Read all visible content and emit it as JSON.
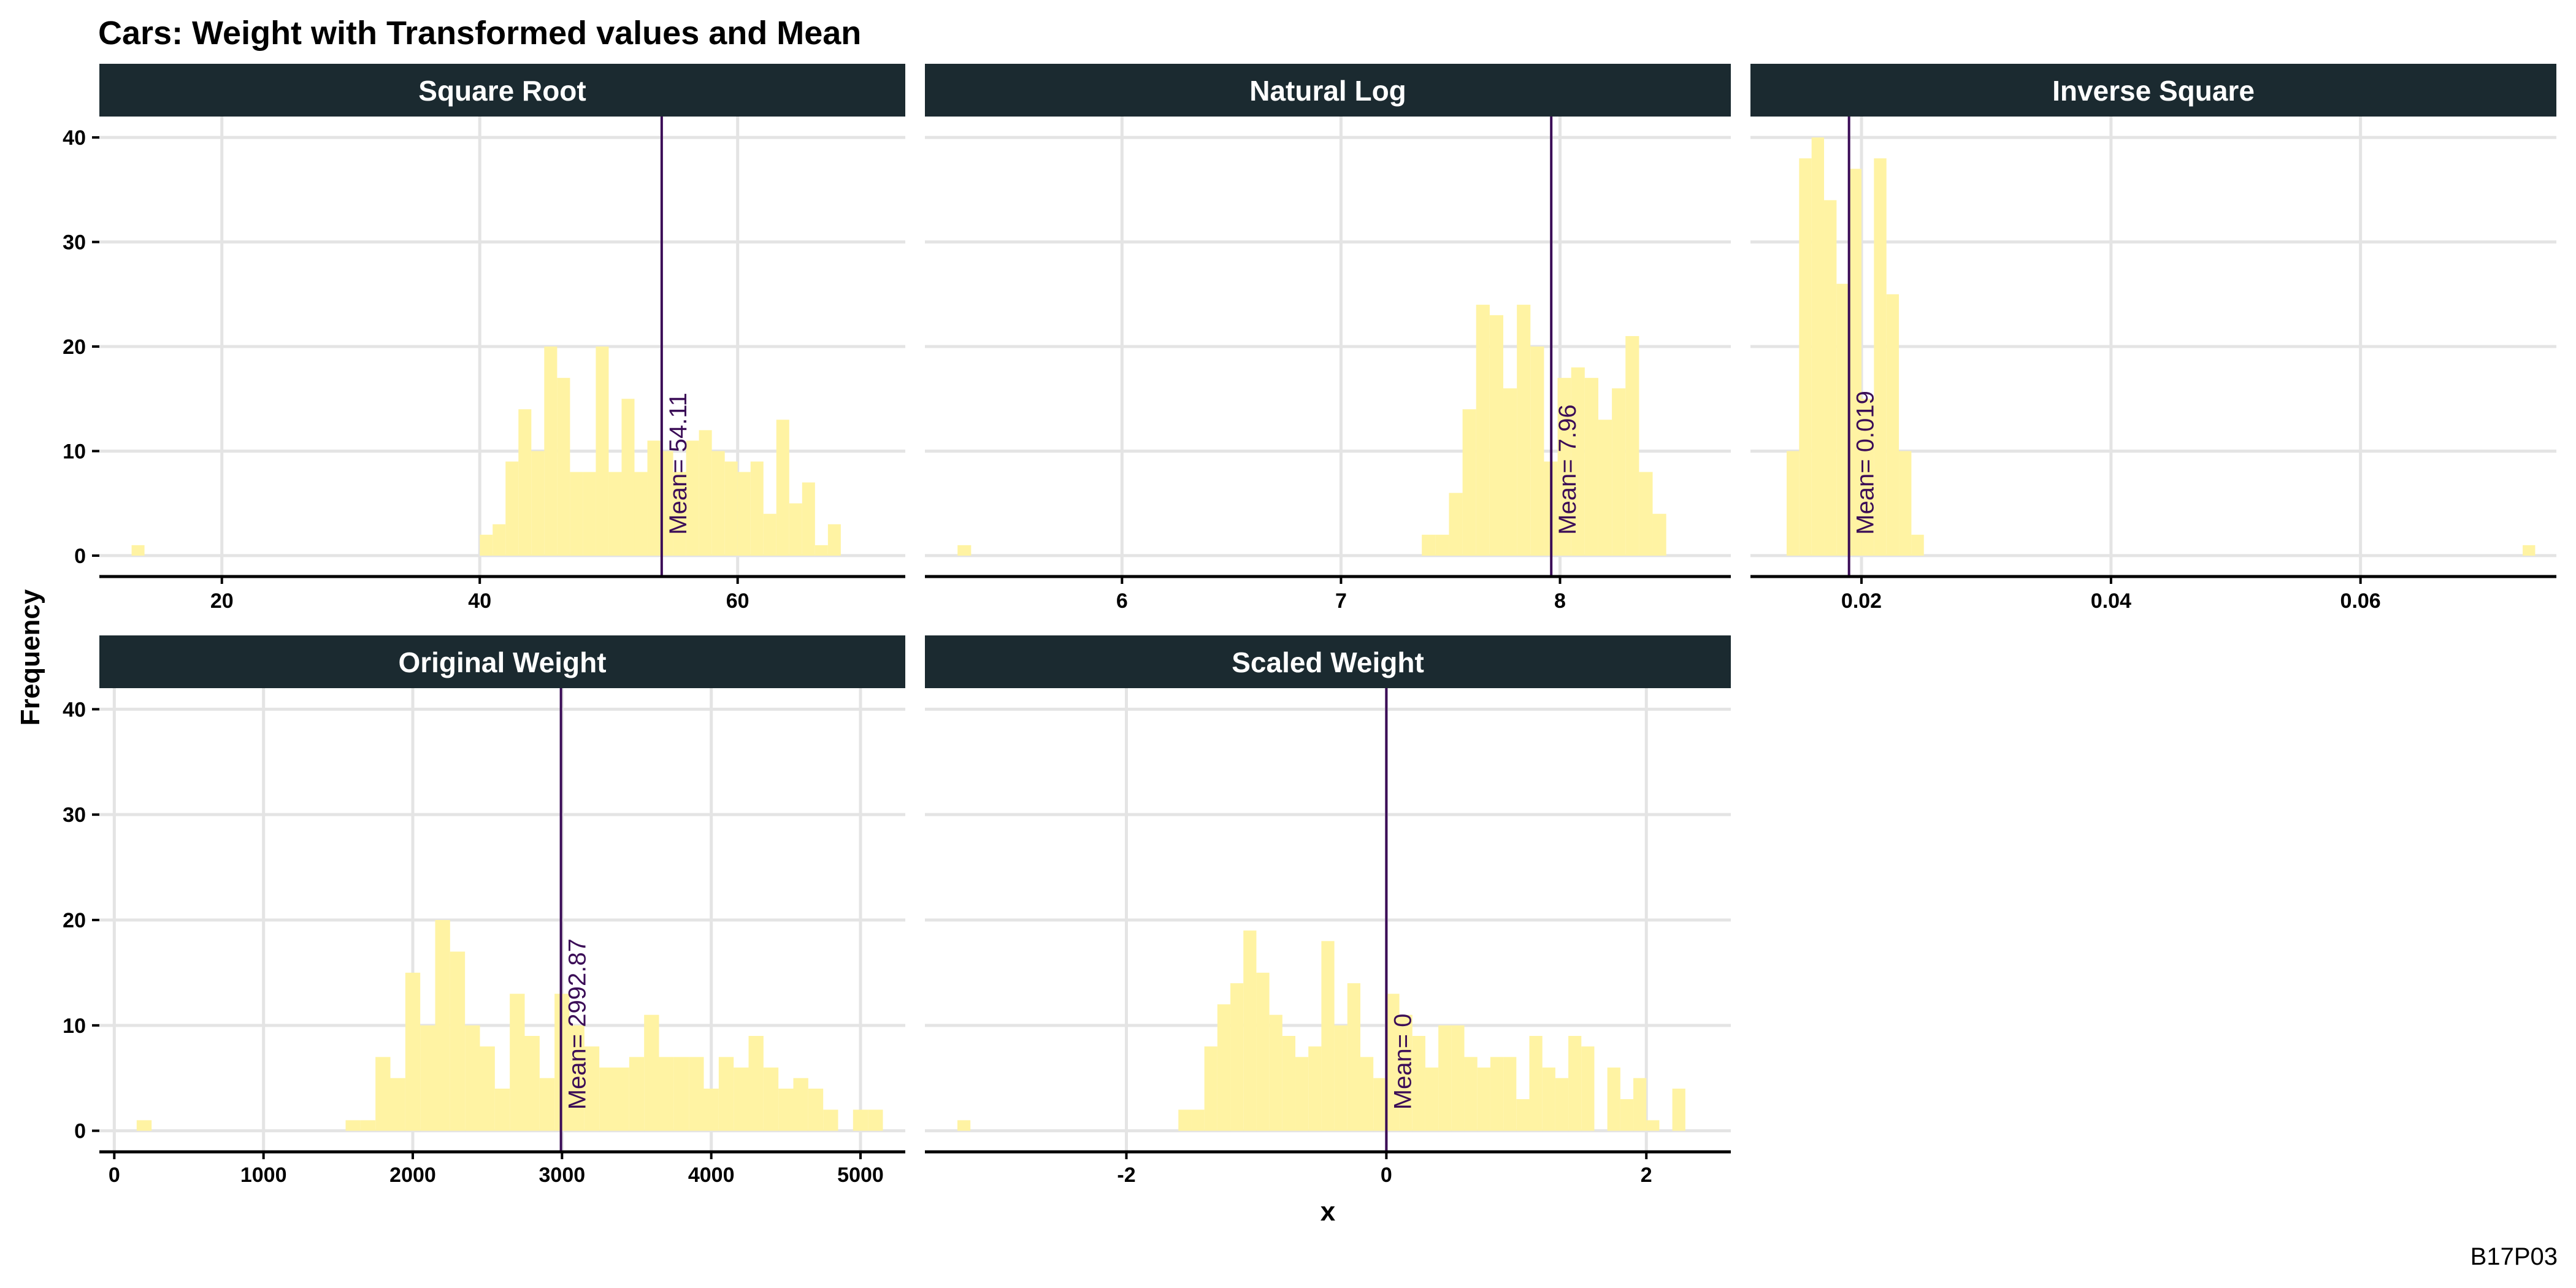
{
  "chart_data": {
    "title": "Cars: Weight with Transformed values and Mean",
    "xlabel": "x",
    "ylabel": "Frequency",
    "caption": "B17P03",
    "type": "bar",
    "colors": {
      "bar": "#fff3a3",
      "mean_line": "#3b0d57",
      "strip": "#1b2a30"
    },
    "shared_y": {
      "ylim": [
        -2,
        42
      ],
      "ticks": [
        0,
        10,
        20,
        30,
        40
      ]
    },
    "panels": [
      {
        "name": "Square Root",
        "xlim": [
          10.5,
          73
        ],
        "xticks": [
          20,
          40,
          60
        ],
        "mean": 54.11,
        "mean_label": "Mean= 54.11",
        "bin_width": 1.0,
        "bins": [
          [
            13.5,
            1
          ],
          [
            40.5,
            2
          ],
          [
            41.5,
            3
          ],
          [
            42.5,
            9
          ],
          [
            43.5,
            14
          ],
          [
            44.5,
            10
          ],
          [
            45.5,
            20
          ],
          [
            46.5,
            17
          ],
          [
            47.5,
            8
          ],
          [
            48.5,
            8
          ],
          [
            49.5,
            20
          ],
          [
            50.5,
            8
          ],
          [
            51.5,
            15
          ],
          [
            52.5,
            8
          ],
          [
            53.5,
            11
          ],
          [
            54.5,
            10
          ],
          [
            55.5,
            8
          ],
          [
            56.5,
            11
          ],
          [
            57.5,
            12
          ],
          [
            58.5,
            10
          ],
          [
            59.5,
            9
          ],
          [
            60.5,
            8
          ],
          [
            61.5,
            9
          ],
          [
            62.5,
            4
          ],
          [
            63.5,
            13
          ],
          [
            64.5,
            5
          ],
          [
            65.5,
            7
          ],
          [
            66.5,
            1
          ],
          [
            67.5,
            3
          ]
        ]
      },
      {
        "name": "Natural Log",
        "xlim": [
          5.1,
          8.78
        ],
        "xticks": [
          6,
          7,
          8
        ],
        "mean": 7.96,
        "mean_label": "Mean= 7.96",
        "bin_width": 0.062,
        "bins": [
          [
            5.28,
            1
          ],
          [
            7.4,
            2
          ],
          [
            7.462,
            2
          ],
          [
            7.524,
            6
          ],
          [
            7.586,
            14
          ],
          [
            7.648,
            24
          ],
          [
            7.71,
            23
          ],
          [
            7.772,
            16
          ],
          [
            7.834,
            24
          ],
          [
            7.896,
            20
          ],
          [
            7.958,
            9
          ],
          [
            8.02,
            17
          ],
          [
            8.082,
            18
          ],
          [
            8.144,
            17
          ],
          [
            8.206,
            13
          ],
          [
            8.268,
            16
          ],
          [
            8.33,
            21
          ],
          [
            8.392,
            8
          ],
          [
            8.454,
            4
          ]
        ]
      },
      {
        "name": "Inverse Square",
        "xlim": [
          0.0111,
          0.0757
        ],
        "xticks": [
          0.02,
          0.04,
          0.06
        ],
        "mean": 0.019,
        "mean_label": "Mean= 0.019",
        "bin_width": 0.001,
        "bins": [
          [
            0.0145,
            10
          ],
          [
            0.0155,
            38
          ],
          [
            0.0165,
            40
          ],
          [
            0.0175,
            34
          ],
          [
            0.0185,
            26
          ],
          [
            0.0195,
            37
          ],
          [
            0.0205,
            15
          ],
          [
            0.0215,
            38
          ],
          [
            0.0225,
            25
          ],
          [
            0.0235,
            10
          ],
          [
            0.0245,
            2
          ],
          [
            0.0735,
            1
          ]
        ]
      },
      {
        "name": "Original Weight",
        "xlim": [
          -100,
          5300
        ],
        "xticks": [
          0,
          1000,
          2000,
          3000,
          4000,
          5000
        ],
        "mean": 2992.87,
        "mean_label": "Mean= 2992.87",
        "bin_width": 100,
        "bins": [
          [
            200,
            1
          ],
          [
            1600,
            1
          ],
          [
            1700,
            1
          ],
          [
            1800,
            7
          ],
          [
            1900,
            5
          ],
          [
            2000,
            15
          ],
          [
            2100,
            10
          ],
          [
            2200,
            20
          ],
          [
            2300,
            17
          ],
          [
            2400,
            10
          ],
          [
            2500,
            8
          ],
          [
            2600,
            4
          ],
          [
            2700,
            13
          ],
          [
            2800,
            9
          ],
          [
            2900,
            5
          ],
          [
            3000,
            13
          ],
          [
            3100,
            10
          ],
          [
            3200,
            8
          ],
          [
            3300,
            6
          ],
          [
            3400,
            6
          ],
          [
            3500,
            7
          ],
          [
            3600,
            11
          ],
          [
            3700,
            7
          ],
          [
            3800,
            7
          ],
          [
            3900,
            7
          ],
          [
            4000,
            4
          ],
          [
            4100,
            7
          ],
          [
            4200,
            6
          ],
          [
            4300,
            9
          ],
          [
            4400,
            6
          ],
          [
            4500,
            4
          ],
          [
            4600,
            5
          ],
          [
            4700,
            4
          ],
          [
            4800,
            2
          ],
          [
            4900,
            0
          ],
          [
            5000,
            2
          ],
          [
            5100,
            2
          ]
        ]
      },
      {
        "name": "Scaled Weight",
        "xlim": [
          -3.55,
          2.65
        ],
        "xticks": [
          -2,
          0,
          2
        ],
        "mean": 0,
        "mean_label": "Mean= 0",
        "bin_width": 0.1,
        "bins": [
          [
            -3.25,
            1
          ],
          [
            -1.55,
            2
          ],
          [
            -1.45,
            2
          ],
          [
            -1.35,
            8
          ],
          [
            -1.25,
            12
          ],
          [
            -1.15,
            14
          ],
          [
            -1.05,
            19
          ],
          [
            -0.95,
            15
          ],
          [
            -0.85,
            11
          ],
          [
            -0.75,
            9
          ],
          [
            -0.65,
            7
          ],
          [
            -0.55,
            8
          ],
          [
            -0.45,
            18
          ],
          [
            -0.35,
            10
          ],
          [
            -0.25,
            14
          ],
          [
            -0.15,
            7
          ],
          [
            -0.05,
            5
          ],
          [
            0.05,
            13
          ],
          [
            0.15,
            11
          ],
          [
            0.25,
            9
          ],
          [
            0.35,
            6
          ],
          [
            0.45,
            10
          ],
          [
            0.55,
            10
          ],
          [
            0.65,
            7
          ],
          [
            0.75,
            6
          ],
          [
            0.85,
            7
          ],
          [
            0.95,
            7
          ],
          [
            1.05,
            3
          ],
          [
            1.15,
            9
          ],
          [
            1.25,
            6
          ],
          [
            1.35,
            5
          ],
          [
            1.45,
            9
          ],
          [
            1.55,
            8
          ],
          [
            1.75,
            6
          ],
          [
            1.85,
            3
          ],
          [
            1.95,
            5
          ],
          [
            2.05,
            1
          ],
          [
            2.25,
            4
          ]
        ]
      }
    ]
  }
}
